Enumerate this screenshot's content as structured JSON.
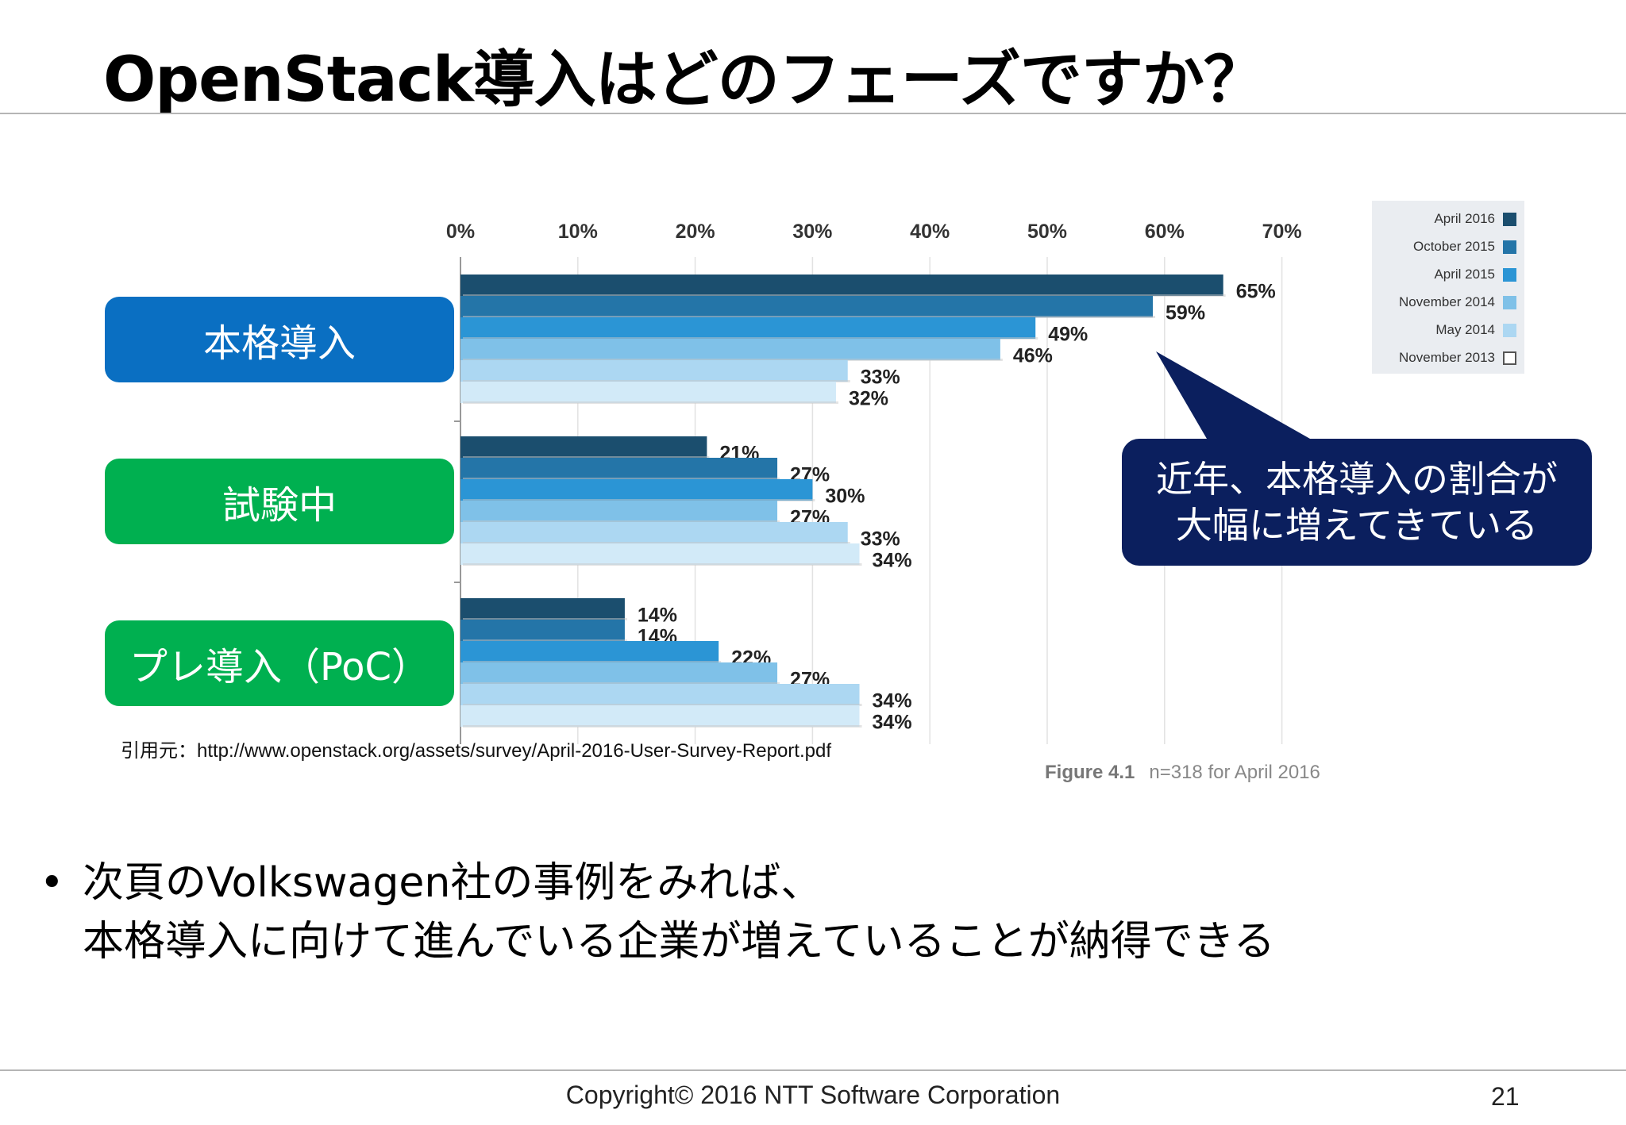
{
  "slide": {
    "title": "OpenStack導入はどのフェーズですか？",
    "source_note": "引用元：http://www.openstack.org/assets/survey/April-2016-User-Survey-Report.pdf",
    "figure_caption_label": "Figure 4.1",
    "figure_caption_text": "n=318 for April 2016",
    "callout": {
      "line1": "近年、本格導入の割合が",
      "line2": "大幅に増えてきている"
    },
    "bullet": {
      "line1": "次頁のVolkswagen社の事例をみれば、",
      "line2": "本格導入に向けて進んでいる企業が増えていることが納得できる"
    },
    "footer": {
      "copyright": "Copyright© 2016 NTT Software Corporation",
      "page": "21"
    },
    "category_colors": [
      "#0a6fc2",
      "#00b050",
      "#00b050"
    ]
  },
  "chart_data": {
    "type": "bar",
    "orientation": "horizontal",
    "categories": [
      "本格導入",
      "試験中",
      "プレ導入（PoC）"
    ],
    "series": [
      {
        "name": "April 2016",
        "values": [
          65,
          21,
          14
        ],
        "color": "#1b4e6e"
      },
      {
        "name": "October 2015",
        "values": [
          59,
          27,
          14
        ],
        "color": "#2475a8"
      },
      {
        "name": "April 2015",
        "values": [
          49,
          30,
          22
        ],
        "color": "#2b95d5"
      },
      {
        "name": "November 2014",
        "values": [
          46,
          27,
          27
        ],
        "color": "#7fc1e8"
      },
      {
        "name": "May 2014",
        "values": [
          33,
          33,
          34
        ],
        "color": "#acd7f2"
      },
      {
        "name": "November 2013",
        "values": [
          32,
          34,
          34
        ],
        "color": "#d2eaf8"
      }
    ],
    "x_ticks": [
      "0%",
      "10%",
      "20%",
      "30%",
      "40%",
      "50%",
      "60%",
      "70%"
    ],
    "xlim": [
      0,
      70
    ],
    "value_suffix": "%",
    "grid": true,
    "legend_position": "top-right"
  }
}
